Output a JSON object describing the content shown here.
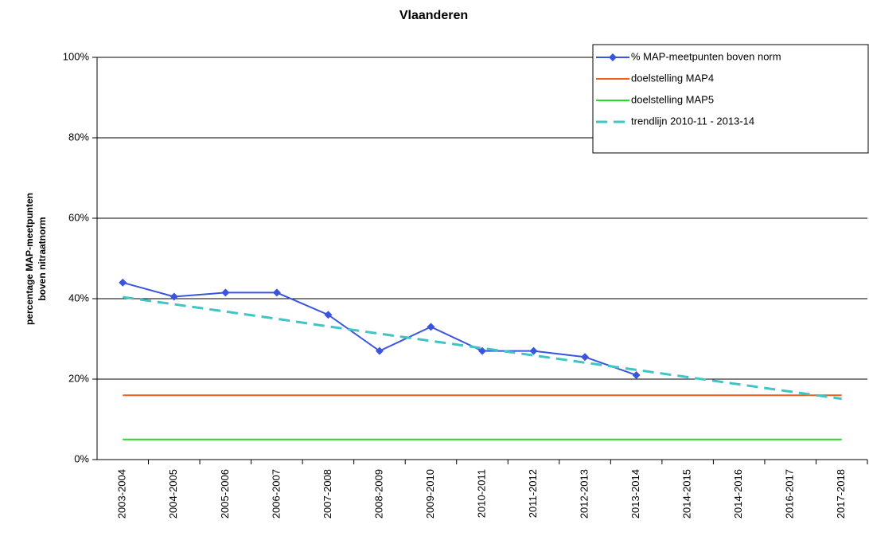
{
  "chart_data": {
    "type": "line",
    "title": "Vlaanderen",
    "ylabel": [
      "percentage MAP-meetpunten",
      "boven nitraatnorm"
    ],
    "categories": [
      "2003-2004",
      "2004-2005",
      "2005-2006",
      "2006-2007",
      "2007-2008",
      "2008-2009",
      "2009-2010",
      "2010-2011",
      "2011-2012",
      "2012-2013",
      "2013-2014",
      "2014-2015",
      "2014-2016",
      "2016-2017",
      "2017-2018"
    ],
    "series": [
      {
        "name": "% MAP-meetpunten boven norm",
        "color": "#3a55dd",
        "marker": "diamond",
        "dash": false,
        "values": [
          44,
          40.5,
          41.5,
          41.5,
          36,
          27,
          33,
          27,
          27,
          25.5,
          21,
          null,
          null,
          null,
          null
        ]
      },
      {
        "name": "doelstelling MAP4",
        "color": "#e8601c",
        "marker": null,
        "dash": false,
        "values": [
          16,
          16,
          16,
          16,
          16,
          16,
          16,
          16,
          16,
          16,
          16,
          16,
          16,
          16,
          16
        ]
      },
      {
        "name": "doelstelling MAP5",
        "color": "#22dd22",
        "marker": null,
        "dash": false,
        "values": [
          5,
          5,
          5,
          5,
          5,
          5,
          5,
          5,
          5,
          5,
          5,
          5,
          5,
          5,
          5
        ]
      },
      {
        "name": "trendlijn 2010-11 - 2013-14",
        "color": "#40c4c4",
        "marker": null,
        "dash": true,
        "values": [
          40.4,
          38.6,
          36.8,
          35.0,
          33.1,
          31.3,
          29.5,
          27.7,
          25.9,
          24.1,
          22.3,
          20.5,
          18.7,
          16.9,
          15.1
        ]
      }
    ],
    "ylim": [
      0,
      100
    ],
    "yticks": [
      {
        "value": 0,
        "label": "0%"
      },
      {
        "value": 20,
        "label": "20%"
      },
      {
        "value": 40,
        "label": "40%"
      },
      {
        "value": 60,
        "label": "60%"
      },
      {
        "value": 80,
        "label": "80%"
      },
      {
        "value": 100,
        "label": "100%"
      }
    ],
    "grid": true,
    "legend_position": "top-right"
  }
}
